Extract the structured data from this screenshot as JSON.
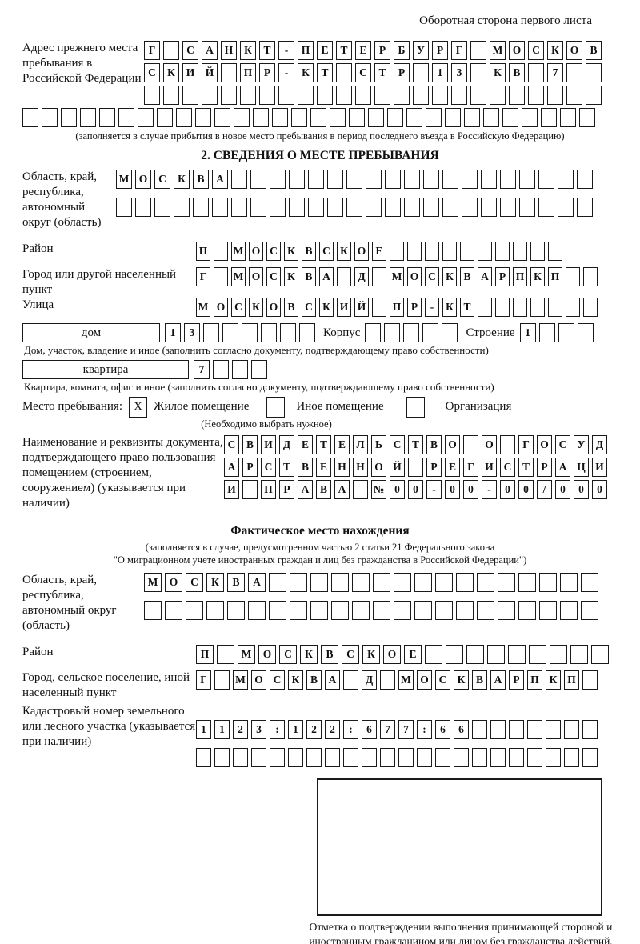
{
  "header": {
    "top_right": "Оборотная сторона первого листа"
  },
  "prev_address": {
    "label": "Адрес прежнего места пребывания в Российской Федерации",
    "rows": [
      [
        "Г",
        "",
        "С",
        "А",
        "Н",
        "К",
        "Т",
        "-",
        "П",
        "Е",
        "Т",
        "Е",
        "Р",
        "Б",
        "У",
        "Р",
        "Г",
        "",
        "М",
        "О",
        "С",
        "К",
        "О",
        "В"
      ],
      [
        "С",
        "К",
        "И",
        "Й",
        "",
        "П",
        "Р",
        "-",
        "К",
        "Т",
        "",
        "С",
        "Т",
        "Р",
        "",
        "1",
        "3",
        "",
        "К",
        "В",
        "",
        "7",
        "",
        ""
      ],
      [
        "",
        "",
        "",
        "",
        "",
        "",
        "",
        "",
        "",
        "",
        "",
        "",
        "",
        "",
        "",
        "",
        "",
        "",
        "",
        "",
        "",
        "",
        "",
        ""
      ]
    ],
    "full_row": [
      "",
      "",
      "",
      "",
      "",
      "",
      "",
      "",
      "",
      "",
      "",
      "",
      "",
      "",
      "",
      "",
      "",
      "",
      "",
      "",
      "",
      "",
      "",
      "",
      "",
      "",
      "",
      "",
      "",
      ""
    ],
    "note": "(заполняется в случае прибытия в новое место пребывания в период последнего въезда в Российскую Федерацию)"
  },
  "section2": {
    "title": "2. СВЕДЕНИЯ О МЕСТЕ ПРЕБЫВАНИЯ",
    "region": {
      "label": "Область, край, республика, автономный округ (область)",
      "rows": [
        [
          "М",
          "О",
          "С",
          "К",
          "В",
          "А",
          "",
          "",
          "",
          "",
          "",
          "",
          "",
          "",
          "",
          "",
          "",
          "",
          "",
          "",
          "",
          "",
          "",
          "",
          ""
        ],
        [
          "",
          "",
          "",
          "",
          "",
          "",
          "",
          "",
          "",
          "",
          "",
          "",
          "",
          "",
          "",
          "",
          "",
          "",
          "",
          "",
          "",
          "",
          "",
          "",
          ""
        ]
      ]
    },
    "district": {
      "label": "Район",
      "row": [
        "П",
        "",
        "М",
        "О",
        "С",
        "К",
        "В",
        "С",
        "К",
        "О",
        "Е",
        "",
        "",
        "",
        "",
        "",
        "",
        "",
        "",
        "",
        ""
      ]
    },
    "city": {
      "label": "Город или другой населенный пункт",
      "row": [
        "Г",
        "",
        "М",
        "О",
        "С",
        "К",
        "В",
        "А",
        "",
        "Д",
        "",
        "М",
        "О",
        "С",
        "К",
        "В",
        "А",
        "Р",
        "П",
        "К",
        "П",
        "",
        ""
      ]
    },
    "street": {
      "label": "Улица",
      "row": [
        "М",
        "О",
        "С",
        "К",
        "О",
        "В",
        "С",
        "К",
        "И",
        "Й",
        "",
        "П",
        "Р",
        "-",
        "К",
        "Т",
        "",
        "",
        "",
        "",
        "",
        "",
        ""
      ]
    },
    "house": {
      "box_label": "дом",
      "cells": [
        "1",
        "3",
        "",
        "",
        "",
        "",
        "",
        ""
      ],
      "korpus_label": "Корпус",
      "korpus_cells": [
        "",
        "",
        "",
        "",
        ""
      ],
      "stroenie_label": "Строение",
      "stroenie_cells": [
        "1",
        "",
        "",
        ""
      ]
    },
    "house_note": "Дом, участок, владение и иное (заполнить согласно документу, подтверждающему право собственности)",
    "apartment": {
      "box_label": "квартира",
      "cells": [
        "7",
        "",
        "",
        ""
      ]
    },
    "apartment_note": "Квартира, комната, офис и иное (заполнить согласно документу, подтверждающему право собственности)",
    "stay_place": {
      "label": "Место пребывания:",
      "options": [
        {
          "label": "Жилое помещение",
          "checked": "X"
        },
        {
          "label": "Иное помещение",
          "checked": ""
        },
        {
          "label": "Организация",
          "checked": ""
        }
      ],
      "note": "(Необходимо выбрать нужное)"
    },
    "document": {
      "label": "Наименование и реквизиты документа, подтверждающего право пользования помещением (строением, сооружением) (указывается при наличии)",
      "rows": [
        [
          "С",
          "В",
          "И",
          "Д",
          "Е",
          "Т",
          "Е",
          "Л",
          "Ь",
          "С",
          "Т",
          "В",
          "О",
          "",
          "О",
          "",
          "Г",
          "О",
          "С",
          "У",
          "Д"
        ],
        [
          "А",
          "Р",
          "С",
          "Т",
          "В",
          "Е",
          "Н",
          "Н",
          "О",
          "Й",
          "",
          "Р",
          "Е",
          "Г",
          "И",
          "С",
          "Т",
          "Р",
          "А",
          "Ц",
          "И"
        ],
        [
          "И",
          "",
          "П",
          "Р",
          "А",
          "В",
          "А",
          "",
          "№",
          "0",
          "0",
          "-",
          "0",
          "0",
          "-",
          "0",
          "0",
          "/",
          "0",
          "0",
          "0"
        ]
      ]
    }
  },
  "actual_location": {
    "title": "Фактическое место нахождения",
    "note1": "(заполняется в случае, предусмотренном частью 2 статьи 21 Федерального закона",
    "note2": "\"О миграционном учете иностранных граждан и лиц без гражданства в Российской Федерации\")",
    "region": {
      "label": "Область, край, республика, автономный округ (область)",
      "rows": [
        [
          "М",
          "О",
          "С",
          "К",
          "В",
          "А",
          "",
          "",
          "",
          "",
          "",
          "",
          "",
          "",
          "",
          "",
          "",
          "",
          "",
          "",
          "",
          ""
        ],
        [
          "",
          "",
          "",
          "",
          "",
          "",
          "",
          "",
          "",
          "",
          "",
          "",
          "",
          "",
          "",
          "",
          "",
          "",
          "",
          "",
          "",
          ""
        ]
      ]
    },
    "district": {
      "label": "Район",
      "row": [
        "П",
        "",
        "М",
        "О",
        "С",
        "К",
        "В",
        "С",
        "К",
        "О",
        "Е",
        "",
        "",
        "",
        "",
        "",
        "",
        "",
        "",
        ""
      ]
    },
    "city": {
      "label": "Город, сельское поселение, иной населенный пункт",
      "row": [
        "Г",
        "",
        "М",
        "О",
        "С",
        "К",
        "В",
        "А",
        "",
        "Д",
        "",
        "М",
        "О",
        "С",
        "К",
        "В",
        "А",
        "Р",
        "П",
        "К",
        "П",
        ""
      ]
    },
    "cadastral": {
      "label": "Кадастровый номер земельного или лесного участка (указывается при наличии)",
      "rows": [
        [
          "1",
          "1",
          "2",
          "3",
          ":",
          "1",
          "2",
          "2",
          ":",
          "6",
          "7",
          "7",
          ":",
          "6",
          "6",
          "",
          "",
          "",
          "",
          "",
          "",
          ""
        ],
        [
          "",
          "",
          "",
          "",
          "",
          "",
          "",
          "",
          "",
          "",
          "",
          "",
          "",
          "",
          "",
          "",
          "",
          "",
          "",
          "",
          "",
          ""
        ]
      ]
    },
    "stamp_caption": "Отметка о подтверждении выполнения принимающей стороной и иностранным гражданином или лицом без гражданства действий, необходимых для его постановки на учет по месту пребывания"
  }
}
